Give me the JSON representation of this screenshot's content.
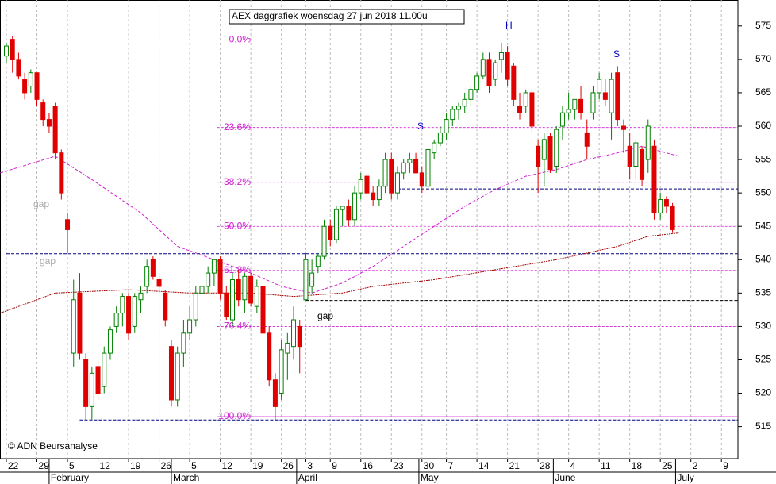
{
  "chart_data": {
    "type": "candlestick",
    "title": "AEX daggrafiek woensdag 27 jun 2018 11.00u",
    "copyright": "© ADN Beursanalyse",
    "xlim": [
      -1.04,
      119.7
    ],
    "xticks": [
      {
        "value": 0,
        "label": "22"
      },
      {
        "value": 5,
        "label": "29"
      },
      {
        "value": 10,
        "label": "5"
      },
      {
        "value": 15,
        "label": "12"
      },
      {
        "value": 20,
        "label": "19"
      },
      {
        "value": 25,
        "label": "26"
      },
      {
        "value": 30,
        "label": "5"
      },
      {
        "value": 35,
        "label": "12"
      },
      {
        "value": 40,
        "label": "19"
      },
      {
        "value": 45,
        "label": "26"
      },
      {
        "value": 49,
        "label": "3"
      },
      {
        "value": 53,
        "label": "9"
      },
      {
        "value": 58,
        "label": "16"
      },
      {
        "value": 63,
        "label": "23"
      },
      {
        "value": 68,
        "label": "30"
      },
      {
        "value": 72,
        "label": "7"
      },
      {
        "value": 77,
        "label": "14"
      },
      {
        "value": 82,
        "label": "21"
      },
      {
        "value": 87,
        "label": "28"
      },
      {
        "value": 92,
        "label": "4"
      },
      {
        "value": 97,
        "label": "11"
      },
      {
        "value": 102,
        "label": "18"
      },
      {
        "value": 107,
        "label": "25"
      },
      {
        "value": 112,
        "label": "2"
      },
      {
        "value": 117,
        "label": "9"
      }
    ],
    "month_ticks": [
      {
        "value": 7,
        "label": "February"
      },
      {
        "value": 27,
        "label": "March"
      },
      {
        "value": 47.5,
        "label": "April"
      },
      {
        "value": 67.5,
        "label": "May"
      },
      {
        "value": 89.5,
        "label": "June"
      },
      {
        "value": 109.5,
        "label": "July"
      }
    ],
    "ylim": [
      510.2,
      578.9
    ],
    "yticks": [
      515,
      520,
      525,
      530,
      535,
      540,
      545,
      550,
      555,
      560,
      565,
      570,
      575
    ],
    "grid": true,
    "up_color": "#008000",
    "down_color": "#e00000",
    "open": [
      570.5,
      573,
      570,
      567,
      566,
      568,
      563.5,
      561,
      563,
      556,
      546,
      526,
      535,
      525,
      518,
      524,
      521,
      526,
      530,
      532,
      534.5,
      530,
      534,
      536,
      540,
      537,
      535,
      527,
      519,
      526,
      529,
      531,
      535,
      536,
      538,
      540,
      535,
      531,
      537,
      534,
      537.5,
      533,
      536,
      529,
      522,
      520,
      526,
      527,
      530,
      534,
      536,
      539,
      540.5,
      545,
      543,
      547.5,
      548,
      546,
      550,
      552.5,
      550,
      549,
      551,
      555,
      550,
      553,
      554.5,
      555,
      553,
      551,
      556,
      557.5,
      559,
      561,
      562.5,
      563,
      564,
      565.5,
      567.5,
      570,
      567,
      570,
      571,
      569,
      563,
      563,
      565,
      557,
      555,
      558.5,
      554,
      560,
      562,
      562.5,
      564,
      559,
      562,
      565,
      565,
      562,
      568,
      560,
      557,
      554,
      556.5,
      555,
      557,
      547,
      549,
      548
    ],
    "high": [
      572.5,
      573.5,
      571,
      568,
      568.5,
      568,
      564,
      562,
      563.5,
      556.5,
      547,
      537,
      538,
      526,
      524,
      525,
      527,
      530,
      533,
      535,
      535,
      535,
      536,
      540,
      540.5,
      538,
      535.5,
      528,
      527,
      531,
      533,
      536,
      537,
      539,
      540,
      540.5,
      536,
      538,
      538.5,
      538,
      538,
      537,
      536.5,
      530,
      523,
      528,
      529,
      533,
      531,
      541,
      540,
      541,
      546,
      546,
      548,
      548,
      549,
      551,
      553,
      553,
      551,
      552,
      556,
      556,
      554,
      555,
      556,
      556,
      554,
      557,
      558,
      560,
      562,
      563,
      563.5,
      565,
      566,
      568,
      571,
      571,
      570,
      572.5,
      572,
      569.5,
      565,
      565.5,
      565.5,
      558,
      559,
      559,
      560,
      563,
      565,
      564,
      566,
      561,
      566,
      568,
      567,
      568,
      569,
      561,
      559,
      558,
      557,
      561,
      558,
      550,
      549.5,
      548.5
    ],
    "low": [
      569.5,
      568,
      567,
      564,
      565,
      563,
      560,
      559,
      555,
      549,
      541,
      524,
      525,
      516,
      516,
      519,
      520,
      525,
      529,
      530,
      528,
      529,
      532,
      535,
      537,
      535,
      530,
      518,
      518,
      524,
      528,
      530,
      534,
      535,
      536,
      534,
      531,
      530,
      533,
      532,
      533,
      532,
      528,
      521,
      516,
      519,
      522,
      525,
      523,
      534,
      535,
      538,
      540,
      542,
      542.5,
      545,
      545,
      545,
      549,
      549,
      548,
      548,
      550,
      549,
      549,
      552,
      553,
      553,
      550,
      550.5,
      555,
      557,
      558,
      560,
      561,
      562,
      563,
      565,
      567,
      565,
      566,
      568,
      566,
      563,
      561,
      562,
      559,
      550,
      551,
      553,
      553,
      558,
      561,
      561,
      561,
      555,
      561,
      564,
      563,
      558,
      560,
      556,
      552,
      552,
      551,
      553,
      546,
      546,
      547,
      544
    ],
    "close": [
      572,
      570,
      567.5,
      565,
      568,
      564,
      561,
      560,
      556,
      550,
      544.5,
      534,
      526,
      518,
      523,
      520,
      526,
      529.5,
      532,
      534.5,
      529,
      534.5,
      535,
      539,
      537.5,
      536,
      531,
      519,
      526,
      529,
      531,
      535,
      536,
      538,
      540,
      535,
      531.5,
      537,
      534,
      537.5,
      533.5,
      536,
      529,
      522,
      518,
      526.5,
      527.5,
      531,
      527,
      540,
      538,
      540.5,
      545,
      543,
      547.5,
      548,
      546,
      550,
      552,
      550,
      549,
      551,
      555,
      550,
      553,
      554.5,
      555,
      553,
      551,
      556.5,
      557.5,
      559,
      561,
      562.5,
      563,
      564,
      565.5,
      567.5,
      570,
      566,
      569.5,
      571,
      567,
      564,
      562,
      565,
      560,
      554,
      558,
      553.5,
      559.5,
      562,
      562.5,
      564,
      562,
      557,
      565,
      567,
      564,
      567,
      561,
      559.5,
      554,
      557.5,
      552,
      560,
      547,
      549,
      548,
      544.5
    ],
    "series": [
      {
        "color": "#d020d0",
        "x": [
          -1,
          8,
          14,
          22,
          28,
          34,
          40,
          45,
          50,
          55,
          60,
          65,
          70,
          75,
          80,
          85,
          90,
          95,
          100,
          104,
          108,
          110
        ],
        "values": [
          553,
          555.5,
          552,
          547,
          542,
          540,
          538,
          536,
          535,
          536.5,
          539,
          542,
          545,
          548,
          550.5,
          552.5,
          553.5,
          555,
          556,
          557,
          556,
          555.5
        ]
      },
      {
        "color": "#a00000",
        "x": [
          -1,
          8,
          20,
          30,
          40,
          47,
          55,
          60,
          70,
          80,
          90,
          100,
          105,
          110
        ],
        "values": [
          532,
          535,
          535.5,
          535,
          535,
          534.5,
          535,
          536,
          537,
          538.5,
          540,
          542,
          543.5,
          544
        ]
      }
    ],
    "fib_levels": [
      {
        "value": 572.9,
        "label": "0.0%"
      },
      {
        "value": 559.8,
        "label": "23.6%"
      },
      {
        "value": 551.6,
        "label": "38.2%"
      },
      {
        "value": 545,
        "label": "50.0%"
      },
      {
        "value": 538.4,
        "label": "61.8%"
      },
      {
        "value": 530,
        "label": "76.4%"
      },
      {
        "value": 516.5,
        "label": "100.0%"
      }
    ],
    "fib_color": "#d020d0",
    "support_lines": [
      572.9,
      540.9,
      550.6,
      533.9,
      516
    ],
    "annotations": [
      "gap",
      "gap",
      "gap",
      "S",
      "H",
      "S"
    ]
  }
}
